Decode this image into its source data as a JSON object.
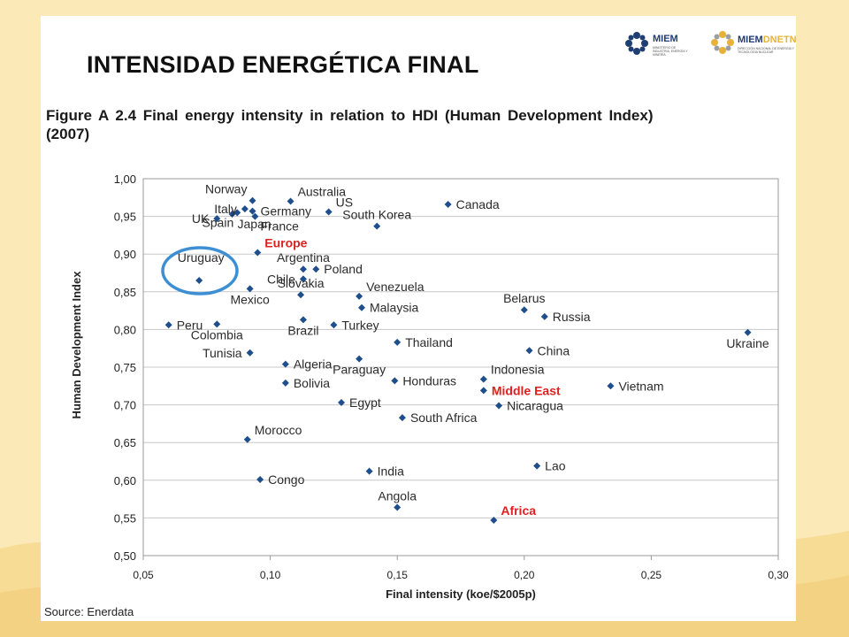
{
  "page": {
    "title": "INTENSIDAD ENERGÉTICA FINAL",
    "logo_left": {
      "name": "MIEM",
      "subtitle": "MINISTERIO DE INDUSTRIA, ENERGÍA Y MINERÍA"
    },
    "logo_right": {
      "name_a": "MIEM",
      "name_b": "DNETN",
      "subtitle": "DIRECCIÓN NACIONAL DE ENERGÍA Y TECNOLOGÍA NUCLEAR"
    },
    "figure_caption_line1": "Figure A 2.4 Final energy intensity in relation to HDI (Human Development Index)",
    "figure_caption_line2": "(2007)",
    "source": "Source: Enerdata"
  },
  "colors": {
    "marker": "#1f4e8c",
    "highlight_circle": "#3d8fd4",
    "region_label": "#e02020",
    "grid": "#c8c8c8"
  },
  "chart_data": {
    "type": "scatter",
    "xlabel": "Final intensity (koe/$2005p)",
    "ylabel": "Human Development Index",
    "xlim": [
      0.05,
      0.3
    ],
    "ylim": [
      0.5,
      1.0
    ],
    "x_ticks": [
      "0,05",
      "0,10",
      "0,15",
      "0,20",
      "0,25",
      "0,30"
    ],
    "x_tick_values": [
      0.05,
      0.1,
      0.15,
      0.2,
      0.25,
      0.3
    ],
    "y_ticks": [
      "0,50",
      "0,55",
      "0,60",
      "0,65",
      "0,70",
      "0,75",
      "0,80",
      "0,85",
      "0,90",
      "0,95",
      "1,00"
    ],
    "y_tick_values": [
      0.5,
      0.55,
      0.6,
      0.65,
      0.7,
      0.75,
      0.8,
      0.85,
      0.9,
      0.95,
      1.0
    ],
    "grid": "horizontal",
    "points": [
      {
        "label": "Norway",
        "x": 0.093,
        "y": 0.971,
        "pos": "nw"
      },
      {
        "label": "Australia",
        "x": 0.108,
        "y": 0.97,
        "pos": "ne"
      },
      {
        "label": "Italy",
        "x": 0.09,
        "y": 0.96,
        "pos": "w"
      },
      {
        "label": "Germany",
        "x": 0.093,
        "y": 0.957,
        "pos": "e"
      },
      {
        "label": "US",
        "x": 0.123,
        "y": 0.956,
        "pos": "ne"
      },
      {
        "label": "Canada",
        "x": 0.17,
        "y": 0.966,
        "pos": "e"
      },
      {
        "label": "UK",
        "x": 0.079,
        "y": 0.947,
        "pos": "w"
      },
      {
        "label": "France",
        "x": 0.094,
        "y": 0.95,
        "pos": "se"
      },
      {
        "label": "Japan",
        "x": 0.085,
        "y": 0.953,
        "pos": "se"
      },
      {
        "label": "South Korea",
        "x": 0.142,
        "y": 0.937,
        "pos": "n"
      },
      {
        "label": "Spain",
        "x": 0.087,
        "y": 0.955,
        "pos": "sw"
      },
      {
        "label": "Europe",
        "x": 0.095,
        "y": 0.902,
        "pos": "ne",
        "region": true
      },
      {
        "label": "Argentina",
        "x": 0.113,
        "y": 0.88,
        "pos": "n"
      },
      {
        "label": "Poland",
        "x": 0.118,
        "y": 0.88,
        "pos": "e"
      },
      {
        "label": "Uruguay",
        "x": 0.072,
        "y": 0.865,
        "pos": "uru"
      },
      {
        "label": "Chile",
        "x": 0.113,
        "y": 0.867,
        "pos": "w"
      },
      {
        "label": "Mexico",
        "x": 0.092,
        "y": 0.854,
        "pos": "s"
      },
      {
        "label": "Venezuela",
        "x": 0.135,
        "y": 0.844,
        "pos": "ne"
      },
      {
        "label": "Slovakia",
        "x": 0.112,
        "y": 0.846,
        "pos": "n"
      },
      {
        "label": "Malaysia",
        "x": 0.136,
        "y": 0.829,
        "pos": "e"
      },
      {
        "label": "Belarus",
        "x": 0.2,
        "y": 0.826,
        "pos": "n"
      },
      {
        "label": "Russia",
        "x": 0.208,
        "y": 0.817,
        "pos": "e"
      },
      {
        "label": "Peru",
        "x": 0.06,
        "y": 0.806,
        "pos": "e"
      },
      {
        "label": "Colombia",
        "x": 0.079,
        "y": 0.807,
        "pos": "s"
      },
      {
        "label": "Brazil",
        "x": 0.113,
        "y": 0.813,
        "pos": "s"
      },
      {
        "label": "Turkey",
        "x": 0.125,
        "y": 0.806,
        "pos": "e"
      },
      {
        "label": "Ukraine",
        "x": 0.288,
        "y": 0.796,
        "pos": "s"
      },
      {
        "label": "Thailand",
        "x": 0.15,
        "y": 0.783,
        "pos": "e"
      },
      {
        "label": "China",
        "x": 0.202,
        "y": 0.772,
        "pos": "e"
      },
      {
        "label": "Tunisia",
        "x": 0.092,
        "y": 0.769,
        "pos": "w"
      },
      {
        "label": "Algeria",
        "x": 0.106,
        "y": 0.754,
        "pos": "e"
      },
      {
        "label": "Paraguay",
        "x": 0.135,
        "y": 0.761,
        "pos": "s"
      },
      {
        "label": "Indonesia",
        "x": 0.184,
        "y": 0.734,
        "pos": "ne"
      },
      {
        "label": "Honduras",
        "x": 0.149,
        "y": 0.732,
        "pos": "e"
      },
      {
        "label": "Bolivia",
        "x": 0.106,
        "y": 0.729,
        "pos": "e"
      },
      {
        "label": "Middle East",
        "x": 0.184,
        "y": 0.719,
        "pos": "e",
        "region": true
      },
      {
        "label": "Vietnam",
        "x": 0.234,
        "y": 0.725,
        "pos": "e"
      },
      {
        "label": "Egypt",
        "x": 0.128,
        "y": 0.703,
        "pos": "e"
      },
      {
        "label": "Nicaragua",
        "x": 0.19,
        "y": 0.699,
        "pos": "e"
      },
      {
        "label": "South Africa",
        "x": 0.152,
        "y": 0.683,
        "pos": "e"
      },
      {
        "label": "Morocco",
        "x": 0.091,
        "y": 0.654,
        "pos": "ne"
      },
      {
        "label": "Lao",
        "x": 0.205,
        "y": 0.619,
        "pos": "e"
      },
      {
        "label": "India",
        "x": 0.139,
        "y": 0.612,
        "pos": "e"
      },
      {
        "label": "Congo",
        "x": 0.096,
        "y": 0.601,
        "pos": "e"
      },
      {
        "label": "Angola",
        "x": 0.15,
        "y": 0.564,
        "pos": "n"
      },
      {
        "label": "Africa",
        "x": 0.188,
        "y": 0.547,
        "pos": "ne",
        "region": true
      }
    ]
  }
}
